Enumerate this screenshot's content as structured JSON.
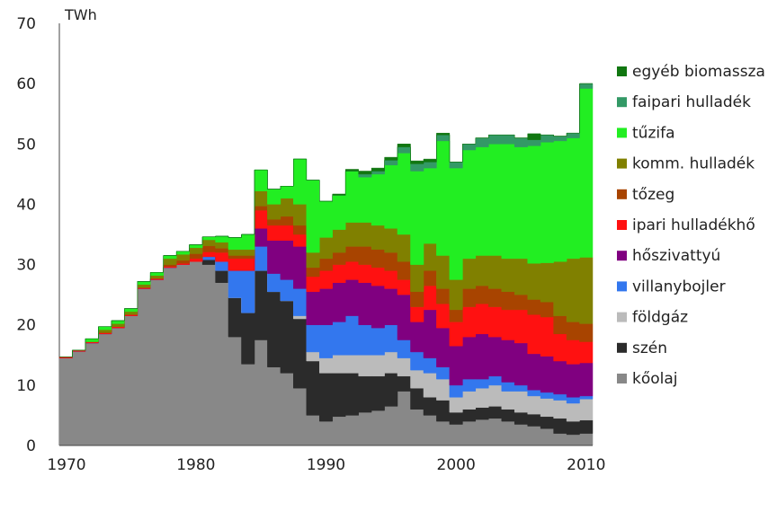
{
  "chart_data": {
    "type": "area",
    "stacked": true,
    "ylabel": "TWh",
    "ylim": [
      0,
      70
    ],
    "yticks": [
      "0",
      "10",
      "20",
      "30",
      "40",
      "50",
      "60",
      "70"
    ],
    "xlim": [
      1970,
      2010
    ],
    "xticks": [
      "1970",
      "1980",
      "1990",
      "2000",
      "2010"
    ],
    "legend_position": "right",
    "x": [
      1970,
      1971,
      1972,
      1973,
      1974,
      1975,
      1976,
      1977,
      1978,
      1979,
      1980,
      1981,
      1982,
      1983,
      1984,
      1985,
      1986,
      1987,
      1988,
      1989,
      1990,
      1991,
      1992,
      1993,
      1994,
      1995,
      1996,
      1997,
      1998,
      1999,
      2000,
      2001,
      2002,
      2003,
      2004,
      2005,
      2006,
      2007,
      2008,
      2009,
      2010
    ],
    "series": [
      {
        "name": "kőolaj",
        "color": "#888888",
        "values": [
          14.5,
          15.6,
          17.0,
          18.5,
          19.5,
          21.5,
          26.0,
          27.5,
          29.5,
          30.0,
          30.5,
          30.0,
          27.0,
          18.0,
          13.5,
          17.5,
          13.0,
          12.0,
          9.5,
          5.0,
          4.0,
          4.8,
          5.0,
          5.5,
          5.8,
          6.5,
          9.0,
          6.0,
          5.0,
          4.0,
          3.5,
          4.0,
          4.3,
          4.5,
          4.0,
          3.5,
          3.2,
          2.8,
          2.0,
          1.8,
          2.0
        ]
      },
      {
        "name": "szén",
        "color": "#2b2b2b",
        "values": [
          0,
          0,
          0,
          0,
          0,
          0,
          0,
          0,
          0,
          0,
          0,
          0.8,
          2.0,
          6.5,
          8.5,
          11.5,
          12.5,
          12.0,
          11.5,
          9.0,
          8.0,
          7.2,
          7.0,
          6.0,
          5.7,
          5.5,
          2.5,
          3.5,
          3.0,
          3.5,
          2.0,
          2.0,
          2.0,
          2.0,
          2.0,
          2.0,
          2.0,
          2.0,
          2.5,
          2.2,
          2.2
        ]
      },
      {
        "name": "földgáz",
        "color": "#bbbbbb",
        "values": [
          0,
          0,
          0,
          0,
          0,
          0,
          0,
          0,
          0,
          0,
          0,
          0,
          0,
          0,
          0,
          0,
          0,
          0,
          0.5,
          1.5,
          2.5,
          3.0,
          3.0,
          3.5,
          3.5,
          3.5,
          3.0,
          3.0,
          4.0,
          3.5,
          2.5,
          3.0,
          3.2,
          3.5,
          3.0,
          3.5,
          3.0,
          3.0,
          3.0,
          3.0,
          3.5
        ]
      },
      {
        "name": "villanybojler",
        "color": "#3377ee",
        "values": [
          0,
          0,
          0,
          0,
          0,
          0,
          0,
          0,
          0,
          0,
          0,
          0.5,
          1.5,
          4.5,
          7.0,
          4.0,
          3.0,
          3.5,
          4.5,
          4.5,
          5.5,
          5.5,
          6.5,
          5.0,
          4.5,
          4.5,
          3.0,
          3.0,
          2.5,
          2.0,
          2.0,
          2.0,
          1.5,
          1.5,
          1.5,
          1.0,
          1.0,
          1.0,
          1.0,
          1.0,
          0.5
        ]
      },
      {
        "name": "hőszivattyú",
        "color": "#800080",
        "values": [
          0,
          0,
          0,
          0,
          0,
          0,
          0,
          0,
          0,
          0,
          0,
          0,
          0,
          0,
          0,
          3.0,
          5.5,
          6.5,
          7.0,
          5.5,
          6.0,
          6.5,
          6.0,
          7.0,
          7.0,
          6.0,
          7.5,
          5.0,
          8.0,
          6.5,
          6.5,
          7.0,
          7.5,
          6.5,
          7.0,
          7.0,
          6.0,
          6.0,
          5.5,
          5.5,
          5.5
        ]
      },
      {
        "name": "ipari hulladékhő",
        "color": "#ff1111",
        "values": [
          0.2,
          0.2,
          0.2,
          0.2,
          0.2,
          0.2,
          0.2,
          0.2,
          0.2,
          0.2,
          0.5,
          0.8,
          1.5,
          2.0,
          2.0,
          3.0,
          2.5,
          2.5,
          2.0,
          2.5,
          3.0,
          3.0,
          3.0,
          3.0,
          3.0,
          3.0,
          2.5,
          2.5,
          4.0,
          4.0,
          4.0,
          5.0,
          5.0,
          5.0,
          5.0,
          5.5,
          6.5,
          6.5,
          4.5,
          4.0,
          3.5
        ]
      },
      {
        "name": "tőzeg",
        "color": "#a84400",
        "values": [
          0,
          0,
          0,
          0,
          0,
          0,
          0,
          0,
          0.3,
          0.5,
          0.8,
          1.0,
          0.7,
          0.5,
          0.5,
          0.7,
          1.0,
          1.5,
          1.5,
          1.5,
          2.0,
          2.0,
          2.5,
          3.0,
          3.0,
          3.0,
          3.0,
          2.5,
          2.5,
          2.5,
          2.0,
          3.0,
          3.0,
          3.0,
          3.0,
          2.5,
          2.5,
          2.5,
          3.0,
          3.0,
          3.0
        ]
      },
      {
        "name": "komm. hulladék",
        "color": "#808000",
        "values": [
          0,
          0,
          0,
          0.5,
          0.5,
          0.5,
          0.5,
          0.5,
          1.0,
          1.0,
          1.0,
          1.0,
          1.0,
          1.0,
          1.0,
          2.5,
          2.5,
          3.0,
          3.5,
          2.5,
          3.5,
          3.8,
          4.0,
          4.0,
          4.0,
          4.0,
          4.5,
          4.5,
          4.5,
          5.5,
          5.0,
          5.0,
          5.0,
          5.5,
          5.5,
          6.0,
          6.0,
          6.5,
          9.0,
          10.5,
          11.0
        ]
      },
      {
        "name": "tűzifa",
        "color": "#22ee22",
        "values": [
          0,
          0,
          0.5,
          0.5,
          0.5,
          0.5,
          0.5,
          0.5,
          0.5,
          0.5,
          0.5,
          0.5,
          1.0,
          2.0,
          2.5,
          3.5,
          2.5,
          2.0,
          7.5,
          12.0,
          6.0,
          5.7,
          8.5,
          7.5,
          8.5,
          10.5,
          13.5,
          15.5,
          12.5,
          19.0,
          18.5,
          18.0,
          18.0,
          18.5,
          19.0,
          18.5,
          19.5,
          20.0,
          20.0,
          20.0,
          28.0
        ]
      },
      {
        "name": "faipari hulladék",
        "color": "#339966",
        "values": [
          0,
          0,
          0,
          0,
          0,
          0,
          0,
          0,
          0,
          0,
          0,
          0,
          0,
          0,
          0,
          0,
          0,
          0,
          0,
          0,
          0,
          0,
          0,
          0.5,
          0.5,
          0.8,
          1.0,
          1.2,
          1.0,
          1.0,
          1.0,
          1.0,
          1.5,
          1.5,
          1.5,
          1.5,
          1.0,
          1.2,
          0.8,
          0.8,
          0.8
        ]
      },
      {
        "name": "egyéb biomassza",
        "color": "#117711",
        "values": [
          0,
          0,
          0,
          0,
          0,
          0,
          0,
          0,
          0,
          0,
          0,
          0,
          0,
          0,
          0,
          0,
          0,
          0,
          0,
          0,
          0,
          0.2,
          0.3,
          0.5,
          0.5,
          0.5,
          0.5,
          0.5,
          0.5,
          0.3,
          0,
          0,
          0,
          0,
          0,
          0,
          1.0,
          0,
          0,
          0,
          0
        ]
      }
    ]
  }
}
